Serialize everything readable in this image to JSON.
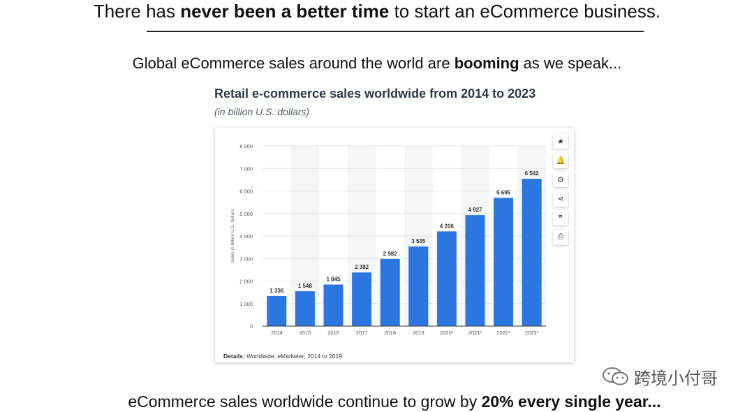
{
  "headline": {
    "part1": "There has ",
    "bold": "never been a better time",
    "part2": " to start an eCommerce business."
  },
  "subline": {
    "part1": "Global eCommerce sales around the world are ",
    "bold": "booming",
    "part2": " as we speak..."
  },
  "chart_data": {
    "type": "bar",
    "title": "Retail e-commerce sales worldwide from 2014 to 2023",
    "subtitle": "(in billion U.S. dollars)",
    "ylabel": "Sales in billion U.S. dollars",
    "xlabel": "",
    "categories": [
      "2014",
      "2015",
      "2016",
      "2017",
      "2018",
      "2019",
      "2020*",
      "2021*",
      "2022*",
      "2023*"
    ],
    "values": [
      1336,
      1548,
      1845,
      2382,
      2982,
      3535,
      4206,
      4927,
      5695,
      6542
    ],
    "value_labels": [
      "1 336",
      "1 548",
      "1 845",
      "2 382",
      "2 982",
      "3 535",
      "4 206",
      "4 927",
      "5 695",
      "6 542"
    ],
    "ylim": [
      0,
      8000
    ],
    "yticks": [
      0,
      1000,
      2000,
      3000,
      4000,
      5000,
      6000,
      7000,
      8000
    ],
    "ytick_labels": [
      "0",
      "1 000",
      "2 000",
      "3 000",
      "4 000",
      "5 000",
      "6 000",
      "7 000",
      "8 000"
    ],
    "bar_color": "#2b76e0",
    "grid": true
  },
  "chart_details": {
    "label": "Details:",
    "text": " Worldwide; eMarketer; 2014 to 2019"
  },
  "side_buttons": [
    {
      "name": "star-icon",
      "glyph": "★"
    },
    {
      "name": "bell-icon",
      "glyph": "🔔"
    },
    {
      "name": "gear-icon",
      "glyph": "⚙"
    },
    {
      "name": "share-icon",
      "glyph": "⋖"
    },
    {
      "name": "quote-icon",
      "glyph": "❞"
    },
    {
      "name": "print-icon",
      "glyph": "⎙"
    }
  ],
  "watermark": {
    "text": "跨境小付哥",
    "icon": "wechat-icon"
  },
  "bottomline": {
    "part1": "eCommerce sales worldwide continue to grow by ",
    "bold": "20% every single year..."
  }
}
